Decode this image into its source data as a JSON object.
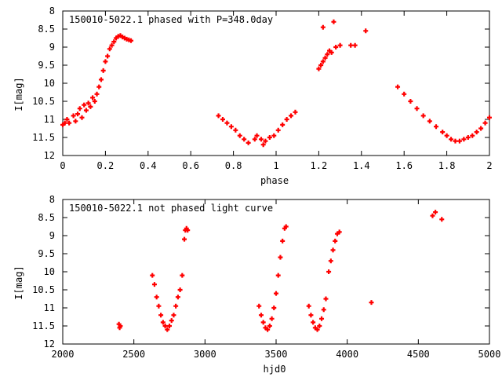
{
  "chart_data": [
    {
      "type": "scatter",
      "title": "150010-5022.1 phased with P=348.0day",
      "xlabel": "phase",
      "ylabel": "I[mag]",
      "xlim": [
        0,
        2
      ],
      "ylim": [
        12,
        8
      ],
      "y_inverted": true,
      "x_ticks": [
        "0",
        "0.2",
        "0.4",
        "0.6",
        "0.8",
        "1",
        "1.2",
        "1.4",
        "1.6",
        "1.8",
        "2"
      ],
      "y_ticks": [
        "8",
        "8.5",
        "9",
        "9.5",
        "10",
        "10.5",
        "11",
        "11.5",
        "12"
      ],
      "marker_color": "#ff0000",
      "marker": "plus",
      "series": [
        {
          "points": [
            [
              0.0,
              11.15
            ],
            [
              0.01,
              11.1
            ],
            [
              0.02,
              11.0
            ],
            [
              0.03,
              11.1
            ],
            [
              0.05,
              10.9
            ],
            [
              0.06,
              11.05
            ],
            [
              0.07,
              10.85
            ],
            [
              0.08,
              10.7
            ],
            [
              0.09,
              10.95
            ],
            [
              0.1,
              10.6
            ],
            [
              0.11,
              10.75
            ],
            [
              0.12,
              10.55
            ],
            [
              0.13,
              10.65
            ],
            [
              0.14,
              10.4
            ],
            [
              0.15,
              10.5
            ],
            [
              0.16,
              10.3
            ],
            [
              0.17,
              10.1
            ],
            [
              0.18,
              9.9
            ],
            [
              0.19,
              9.65
            ],
            [
              0.2,
              9.4
            ],
            [
              0.21,
              9.25
            ],
            [
              0.22,
              9.05
            ],
            [
              0.23,
              8.95
            ],
            [
              0.24,
              8.85
            ],
            [
              0.25,
              8.75
            ],
            [
              0.26,
              8.7
            ],
            [
              0.27,
              8.68
            ],
            [
              0.28,
              8.72
            ],
            [
              0.29,
              8.75
            ],
            [
              0.3,
              8.78
            ],
            [
              0.31,
              8.8
            ],
            [
              0.32,
              8.82
            ],
            [
              0.73,
              10.9
            ],
            [
              0.75,
              11.0
            ],
            [
              0.77,
              11.1
            ],
            [
              0.79,
              11.2
            ],
            [
              0.81,
              11.3
            ],
            [
              0.83,
              11.45
            ],
            [
              0.85,
              11.55
            ],
            [
              0.87,
              11.65
            ],
            [
              0.9,
              11.55
            ],
            [
              0.91,
              11.45
            ],
            [
              0.93,
              11.55
            ],
            [
              0.94,
              11.7
            ],
            [
              0.95,
              11.6
            ],
            [
              0.97,
              11.5
            ],
            [
              0.99,
              11.45
            ],
            [
              1.01,
              11.3
            ],
            [
              1.03,
              11.15
            ],
            [
              1.05,
              11.0
            ],
            [
              1.07,
              10.9
            ],
            [
              1.09,
              10.8
            ],
            [
              1.2,
              9.6
            ],
            [
              1.21,
              9.5
            ],
            [
              1.22,
              9.4
            ],
            [
              1.23,
              9.3
            ],
            [
              1.24,
              9.2
            ],
            [
              1.25,
              9.1
            ],
            [
              1.26,
              9.15
            ],
            [
              1.28,
              9.0
            ],
            [
              1.3,
              8.95
            ],
            [
              1.35,
              8.95
            ],
            [
              1.37,
              8.95
            ],
            [
              1.22,
              8.45
            ],
            [
              1.27,
              8.3
            ],
            [
              1.42,
              8.55
            ],
            [
              1.57,
              10.1
            ],
            [
              1.6,
              10.3
            ],
            [
              1.63,
              10.5
            ],
            [
              1.66,
              10.7
            ],
            [
              1.69,
              10.9
            ],
            [
              1.72,
              11.05
            ],
            [
              1.75,
              11.2
            ],
            [
              1.78,
              11.35
            ],
            [
              1.8,
              11.45
            ],
            [
              1.82,
              11.55
            ],
            [
              1.84,
              11.6
            ],
            [
              1.86,
              11.6
            ],
            [
              1.88,
              11.55
            ],
            [
              1.9,
              11.5
            ],
            [
              1.92,
              11.45
            ],
            [
              1.94,
              11.35
            ],
            [
              1.96,
              11.25
            ],
            [
              1.98,
              11.1
            ],
            [
              2.0,
              10.95
            ]
          ]
        }
      ]
    },
    {
      "type": "scatter",
      "title": "150010-5022.1 not phased light curve",
      "xlabel": "hjd0",
      "ylabel": "I[mag]",
      "xlim": [
        2000,
        5000
      ],
      "ylim": [
        12,
        8
      ],
      "y_inverted": true,
      "x_ticks": [
        "2000",
        "2500",
        "3000",
        "3500",
        "4000",
        "4500",
        "5000"
      ],
      "y_ticks": [
        "8",
        "8.5",
        "9",
        "9.5",
        "10",
        "10.5",
        "11",
        "11.5",
        "12"
      ],
      "marker_color": "#ff0000",
      "marker": "plus",
      "series": [
        {
          "points": [
            [
              2395,
              11.45
            ],
            [
              2400,
              11.55
            ],
            [
              2405,
              11.5
            ],
            [
              2630,
              10.1
            ],
            [
              2645,
              10.35
            ],
            [
              2660,
              10.7
            ],
            [
              2675,
              10.95
            ],
            [
              2690,
              11.2
            ],
            [
              2705,
              11.4
            ],
            [
              2720,
              11.5
            ],
            [
              2735,
              11.6
            ],
            [
              2750,
              11.5
            ],
            [
              2765,
              11.35
            ],
            [
              2780,
              11.2
            ],
            [
              2795,
              10.95
            ],
            [
              2810,
              10.7
            ],
            [
              2825,
              10.5
            ],
            [
              2840,
              10.1
            ],
            [
              2855,
              9.1
            ],
            [
              2862,
              8.85
            ],
            [
              2870,
              8.8
            ],
            [
              2878,
              8.85
            ],
            [
              3380,
              10.95
            ],
            [
              3395,
              11.2
            ],
            [
              3410,
              11.4
            ],
            [
              3425,
              11.55
            ],
            [
              3440,
              11.6
            ],
            [
              3455,
              11.5
            ],
            [
              3470,
              11.3
            ],
            [
              3485,
              11.0
            ],
            [
              3500,
              10.6
            ],
            [
              3515,
              10.1
            ],
            [
              3530,
              9.6
            ],
            [
              3545,
              9.15
            ],
            [
              3560,
              8.8
            ],
            [
              3570,
              8.75
            ],
            [
              3730,
              10.95
            ],
            [
              3745,
              11.2
            ],
            [
              3760,
              11.4
            ],
            [
              3775,
              11.55
            ],
            [
              3790,
              11.6
            ],
            [
              3805,
              11.5
            ],
            [
              3820,
              11.3
            ],
            [
              3835,
              11.05
            ],
            [
              3850,
              10.75
            ],
            [
              3870,
              10.0
            ],
            [
              3885,
              9.7
            ],
            [
              3900,
              9.4
            ],
            [
              3915,
              9.15
            ],
            [
              3930,
              8.95
            ],
            [
              3945,
              8.9
            ],
            [
              4170,
              10.85
            ],
            [
              4600,
              8.45
            ],
            [
              4620,
              8.35
            ],
            [
              4665,
              8.55
            ]
          ]
        }
      ]
    }
  ]
}
